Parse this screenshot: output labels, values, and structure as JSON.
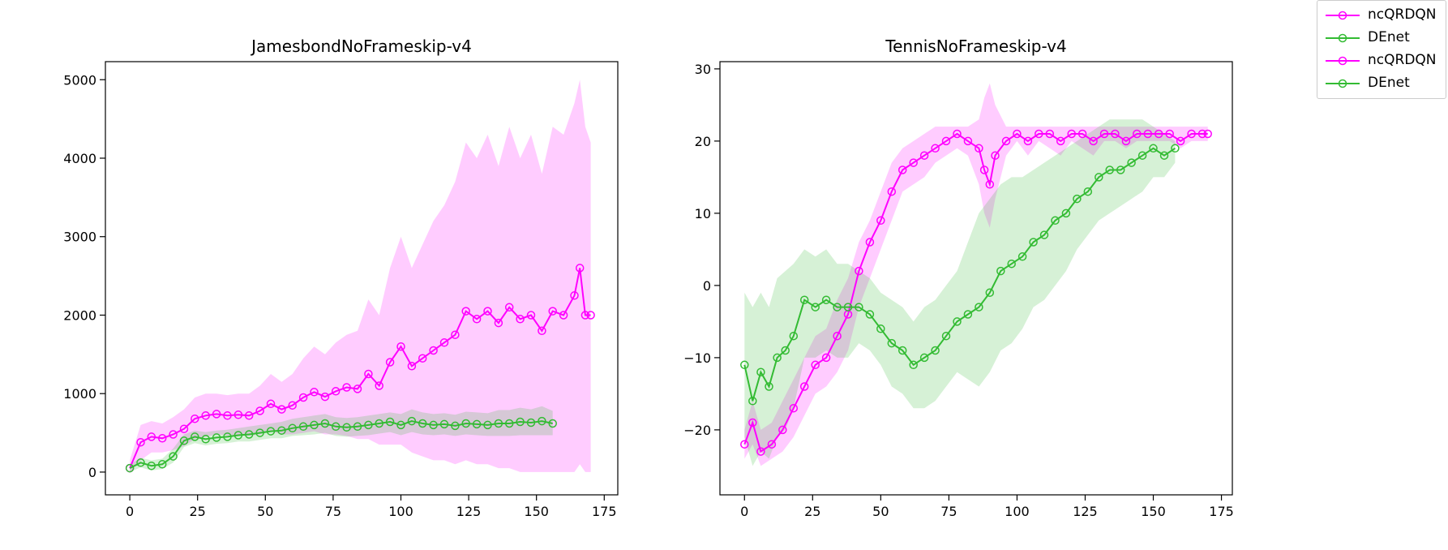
{
  "colors": {
    "ncQRDQN": "#ff00ff",
    "DEnet": "#33bb33"
  },
  "legend": [
    {
      "label": "ncQRDQN",
      "color": "#ff00ff"
    },
    {
      "label": "DEnet",
      "color": "#33bb33"
    },
    {
      "label": "ncQRDQN",
      "color": "#ff00ff"
    },
    {
      "label": "DEnet",
      "color": "#33bb33"
    }
  ],
  "chart_data": [
    {
      "type": "line",
      "title": "JamesbondNoFrameskip-v4",
      "xlabel": "",
      "ylabel": "",
      "xlim": [
        -9,
        180
      ],
      "ylim": [
        -290,
        5230
      ],
      "xticks": [
        0,
        25,
        50,
        75,
        100,
        125,
        150,
        175
      ],
      "yticks": [
        0,
        1000,
        2000,
        3000,
        4000,
        5000
      ],
      "legend_placement": "outside-top-right",
      "grid": false,
      "series": [
        {
          "name": "ncQRDQN",
          "color": "#ff00ff",
          "x": [
            0,
            4,
            8,
            12,
            16,
            20,
            24,
            28,
            32,
            36,
            40,
            44,
            48,
            52,
            56,
            60,
            64,
            68,
            72,
            76,
            80,
            84,
            88,
            92,
            96,
            100,
            104,
            108,
            112,
            116,
            120,
            124,
            128,
            132,
            136,
            140,
            144,
            148,
            152,
            156,
            160,
            164,
            166,
            168,
            170
          ],
          "values": [
            50,
            380,
            450,
            430,
            480,
            550,
            680,
            720,
            740,
            720,
            730,
            720,
            780,
            870,
            800,
            850,
            950,
            1020,
            960,
            1030,
            1080,
            1060,
            1250,
            1100,
            1400,
            1600,
            1350,
            1450,
            1550,
            1650,
            1750,
            2050,
            1950,
            2050,
            1900,
            2100,
            1950,
            2000,
            1800,
            2050,
            2000,
            2250,
            2600,
            2000,
            2000
          ],
          "band_upper": [
            150,
            600,
            650,
            620,
            700,
            800,
            950,
            1000,
            1000,
            980,
            1000,
            1000,
            1100,
            1250,
            1150,
            1250,
            1450,
            1600,
            1500,
            1650,
            1750,
            1800,
            2200,
            2000,
            2600,
            3000,
            2600,
            2900,
            3200,
            3400,
            3700,
            4200,
            4000,
            4300,
            3900,
            4400,
            4000,
            4300,
            3800,
            4400,
            4300,
            4700,
            5000,
            4400,
            4200
          ],
          "band_lower": [
            0,
            150,
            250,
            250,
            280,
            330,
            420,
            450,
            480,
            470,
            470,
            460,
            480,
            520,
            480,
            480,
            500,
            520,
            480,
            480,
            460,
            420,
            420,
            350,
            350,
            350,
            250,
            200,
            150,
            150,
            100,
            150,
            100,
            100,
            50,
            50,
            0,
            0,
            0,
            0,
            0,
            0,
            100,
            0,
            0
          ]
        },
        {
          "name": "DEnet",
          "color": "#33bb33",
          "x": [
            0,
            4,
            8,
            12,
            16,
            20,
            24,
            28,
            32,
            36,
            40,
            44,
            48,
            52,
            56,
            60,
            64,
            68,
            72,
            76,
            80,
            84,
            88,
            92,
            96,
            100,
            104,
            108,
            112,
            116,
            120,
            124,
            128,
            132,
            136,
            140,
            144,
            148,
            152,
            156
          ],
          "values": [
            50,
            120,
            80,
            100,
            200,
            400,
            450,
            420,
            440,
            450,
            470,
            480,
            500,
            520,
            530,
            560,
            580,
            600,
            620,
            580,
            570,
            580,
            600,
            620,
            640,
            600,
            650,
            620,
            600,
            610,
            590,
            620,
            610,
            600,
            620,
            620,
            640,
            630,
            650,
            620
          ],
          "band_upper": [
            100,
            180,
            150,
            170,
            300,
            480,
            530,
            510,
            530,
            540,
            560,
            580,
            600,
            620,
            640,
            680,
            700,
            720,
            740,
            700,
            690,
            700,
            720,
            740,
            760,
            740,
            800,
            760,
            740,
            750,
            730,
            770,
            760,
            750,
            790,
            790,
            820,
            800,
            840,
            780
          ],
          "band_lower": [
            0,
            60,
            20,
            40,
            120,
            320,
            370,
            340,
            360,
            370,
            390,
            390,
            410,
            430,
            430,
            460,
            470,
            480,
            500,
            460,
            450,
            460,
            470,
            490,
            510,
            470,
            510,
            480,
            470,
            480,
            460,
            480,
            470,
            460,
            460,
            460,
            470,
            470,
            470,
            470
          ]
        }
      ]
    },
    {
      "type": "line",
      "title": "TennisNoFrameskip-v4",
      "xlabel": "",
      "ylabel": "",
      "xlim": [
        -9,
        179
      ],
      "ylim": [
        -29,
        31
      ],
      "xticks": [
        0,
        25,
        50,
        75,
        100,
        125,
        150,
        175
      ],
      "yticks": [
        -20,
        -10,
        0,
        10,
        20,
        30
      ],
      "legend_placement": "outside-top-right",
      "grid": false,
      "series": [
        {
          "name": "ncQRDQN",
          "color": "#ff00ff",
          "x": [
            0,
            3,
            6,
            10,
            14,
            18,
            22,
            26,
            30,
            34,
            38,
            42,
            46,
            50,
            54,
            58,
            62,
            66,
            70,
            74,
            78,
            82,
            86,
            88,
            90,
            92,
            96,
            100,
            104,
            108,
            112,
            116,
            120,
            124,
            128,
            132,
            136,
            140,
            144,
            148,
            152,
            156,
            160,
            164,
            168,
            170
          ],
          "values": [
            -22,
            -19,
            -23,
            -22,
            -20,
            -17,
            -14,
            -11,
            -10,
            -7,
            -4,
            2,
            6,
            9,
            13,
            16,
            17,
            18,
            19,
            20,
            21,
            20,
            19,
            16,
            14,
            18,
            20,
            21,
            20,
            21,
            21,
            20,
            21,
            21,
            20,
            21,
            21,
            20,
            21,
            21,
            21,
            21,
            20,
            21,
            21,
            21
          ],
          "band_upper": [
            -20,
            -16,
            -20,
            -19,
            -16,
            -13,
            -10,
            -7,
            -6,
            -2,
            1,
            6,
            9,
            13,
            17,
            19,
            20,
            21,
            22,
            22,
            22,
            22,
            23,
            26,
            28,
            25,
            22,
            22,
            22,
            22,
            22,
            22,
            22,
            22,
            22,
            22,
            22,
            22,
            22,
            22,
            22,
            22,
            22,
            22,
            22,
            22
          ],
          "band_lower": [
            -24,
            -22,
            -25,
            -24,
            -23,
            -21,
            -18,
            -15,
            -14,
            -12,
            -9,
            -3,
            1,
            5,
            9,
            13,
            14,
            15,
            17,
            18,
            19,
            18,
            14,
            10,
            8,
            12,
            18,
            20,
            18,
            20,
            19,
            18,
            20,
            19,
            18,
            20,
            20,
            19,
            20,
            20,
            20,
            20,
            19,
            20,
            20,
            20
          ]
        },
        {
          "name": "DEnet",
          "color": "#33bb33",
          "x": [
            0,
            3,
            6,
            9,
            12,
            15,
            18,
            22,
            26,
            30,
            34,
            38,
            42,
            46,
            50,
            54,
            58,
            62,
            66,
            70,
            74,
            78,
            82,
            86,
            90,
            94,
            98,
            102,
            106,
            110,
            114,
            118,
            122,
            126,
            130,
            134,
            138,
            142,
            146,
            150,
            154,
            158
          ],
          "values": [
            -11,
            -16,
            -12,
            -14,
            -10,
            -9,
            -7,
            -2,
            -3,
            -2,
            -3,
            -3,
            -3,
            -4,
            -6,
            -8,
            -9,
            -11,
            -10,
            -9,
            -7,
            -5,
            -4,
            -3,
            -1,
            2,
            3,
            4,
            6,
            7,
            9,
            10,
            12,
            13,
            15,
            16,
            16,
            17,
            18,
            19,
            18,
            19
          ],
          "band_upper": [
            -1,
            -3,
            -1,
            -3,
            1,
            2,
            3,
            5,
            4,
            5,
            3,
            3,
            2,
            1,
            -1,
            -2,
            -3,
            -5,
            -3,
            -2,
            0,
            2,
            6,
            10,
            12,
            14,
            15,
            15,
            16,
            17,
            18,
            19,
            20,
            21,
            22,
            23,
            23,
            23,
            23,
            22,
            21,
            20
          ],
          "band_lower": [
            -21,
            -25,
            -23,
            -24,
            -21,
            -20,
            -17,
            -10,
            -10,
            -9,
            -10,
            -10,
            -8,
            -9,
            -11,
            -14,
            -15,
            -17,
            -17,
            -16,
            -14,
            -12,
            -13,
            -14,
            -12,
            -9,
            -8,
            -6,
            -3,
            -2,
            0,
            2,
            5,
            7,
            9,
            10,
            11,
            12,
            13,
            15,
            15,
            17
          ]
        }
      ]
    }
  ]
}
